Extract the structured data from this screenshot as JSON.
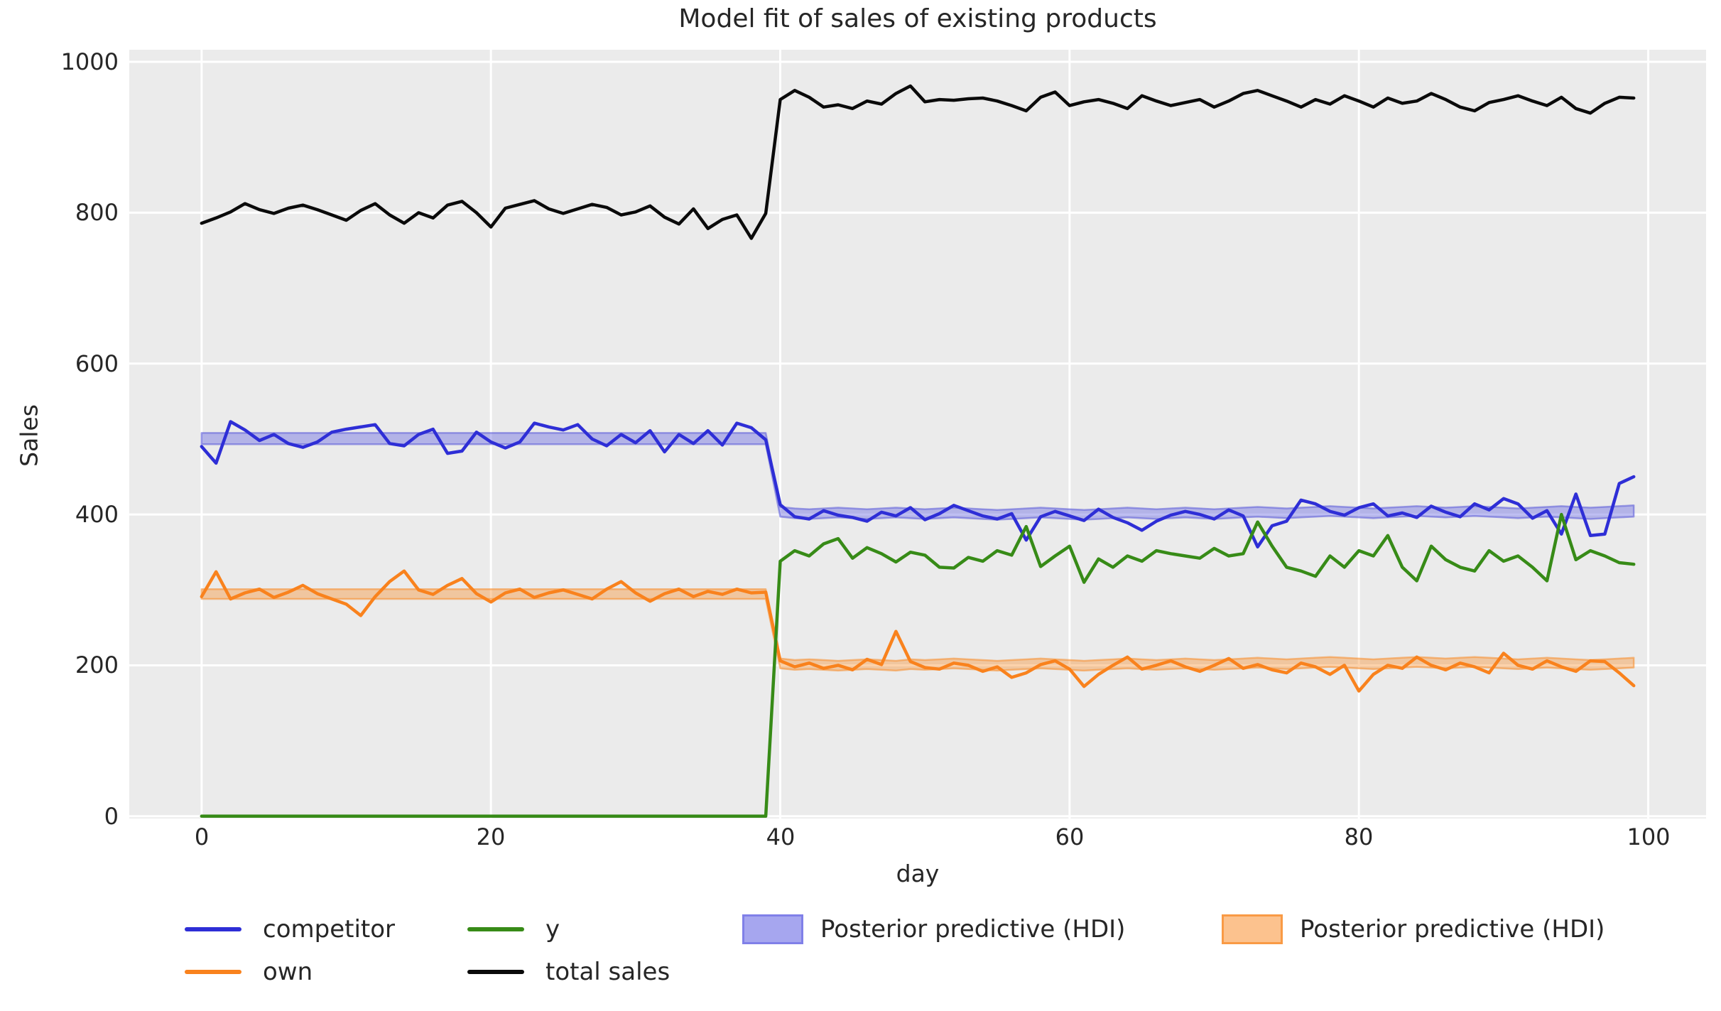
{
  "title": "Model fit of sales of existing products",
  "axes": {
    "xlabel": "day",
    "ylabel": "Sales",
    "xticks": [
      0,
      20,
      40,
      60,
      80,
      100
    ],
    "yticks": [
      0,
      200,
      400,
      600,
      800,
      1000
    ],
    "xlim": [
      -5,
      104
    ],
    "ylim": [
      -3,
      1016
    ]
  },
  "colors": {
    "figure_bg": "#ffffff",
    "plot_bg": "#ebebeb",
    "grid": "#ffffff",
    "text": "#262626",
    "competitor": "#2e2ed6",
    "own": "#f9821d",
    "y": "#378b17",
    "total_sales": "#0a0a0a",
    "hdi_competitor": "#6f6fe3",
    "hdi_own": "#f89436"
  },
  "legend": {
    "items": [
      {
        "label": "competitor",
        "marker": "line",
        "color": "#2e2ed6"
      },
      {
        "label": "own",
        "marker": "line",
        "color": "#f9821d"
      },
      {
        "label": "y",
        "marker": "line",
        "color": "#378b17"
      },
      {
        "label": "total sales",
        "marker": "line",
        "color": "#0a0a0a"
      },
      {
        "label": "Posterior predictive (HDI)",
        "marker": "patch",
        "fill": "#a6a6ef",
        "border": "#8080e8"
      },
      {
        "label": "Posterior predictive (HDI)",
        "marker": "patch",
        "fill": "#fcc28e",
        "border": "#f99a45"
      }
    ]
  },
  "chart_data": {
    "type": "line",
    "title": "Model fit of sales of existing products",
    "xlabel": "day",
    "ylabel": "Sales",
    "grid": true,
    "legend_position": "below",
    "days": [
      0,
      1,
      2,
      3,
      4,
      5,
      6,
      7,
      8,
      9,
      10,
      11,
      12,
      13,
      14,
      15,
      16,
      17,
      18,
      19,
      20,
      21,
      22,
      23,
      24,
      25,
      26,
      27,
      28,
      29,
      30,
      31,
      32,
      33,
      34,
      35,
      36,
      37,
      38,
      39,
      40,
      41,
      42,
      43,
      44,
      45,
      46,
      47,
      48,
      49,
      50,
      51,
      52,
      53,
      54,
      55,
      56,
      57,
      58,
      59,
      60,
      61,
      62,
      63,
      64,
      65,
      66,
      67,
      68,
      69,
      70,
      71,
      72,
      73,
      74,
      75,
      76,
      77,
      78,
      79,
      80,
      81,
      82,
      83,
      84,
      85,
      86,
      87,
      88,
      89,
      90,
      91,
      92,
      93,
      94,
      95,
      96,
      97,
      98,
      99
    ],
    "series": [
      {
        "name": "competitor",
        "color": "#2e2ed6",
        "values": [
          490,
          468,
          523,
          512,
          498,
          506,
          494,
          489,
          496,
          509,
          513,
          516,
          519,
          494,
          491,
          506,
          513,
          481,
          484,
          509,
          496,
          488,
          496,
          521,
          516,
          512,
          519,
          500,
          491,
          506,
          495,
          511,
          483,
          506,
          494,
          511,
          492,
          521,
          515,
          499,
          413,
          397,
          394,
          405,
          399,
          396,
          391,
          403,
          398,
          409,
          393,
          401,
          412,
          405,
          398,
          394,
          401,
          366,
          397,
          404,
          398,
          392,
          407,
          396,
          389,
          379,
          391,
          399,
          404,
          400,
          394,
          406,
          398,
          357,
          385,
          391,
          419,
          414,
          404,
          399,
          409,
          414,
          398,
          402,
          396,
          411,
          403,
          397,
          414,
          406,
          421,
          414,
          395,
          405,
          374,
          427,
          372,
          374,
          441,
          450
        ]
      },
      {
        "name": "own",
        "color": "#f9821d",
        "values": [
          291,
          324,
          288,
          296,
          301,
          290,
          297,
          306,
          295,
          288,
          281,
          266,
          291,
          311,
          325,
          300,
          294,
          306,
          315,
          295,
          284,
          296,
          301,
          290,
          296,
          300,
          294,
          288,
          301,
          311,
          296,
          285,
          295,
          301,
          291,
          298,
          294,
          301,
          296,
          297,
          206,
          198,
          203,
          196,
          200,
          194,
          208,
          201,
          245,
          205,
          197,
          195,
          203,
          200,
          192,
          198,
          184,
          190,
          201,
          206,
          195,
          172,
          188,
          200,
          211,
          195,
          200,
          206,
          198,
          192,
          200,
          209,
          196,
          201,
          194,
          190,
          203,
          198,
          188,
          200,
          166,
          188,
          200,
          196,
          211,
          200,
          194,
          203,
          198,
          190,
          216,
          200,
          195,
          206,
          198,
          192,
          206,
          205,
          190,
          173
        ]
      },
      {
        "name": "y",
        "color": "#378b17",
        "values": [
          0,
          0,
          0,
          0,
          0,
          0,
          0,
          0,
          0,
          0,
          0,
          0,
          0,
          0,
          0,
          0,
          0,
          0,
          0,
          0,
          0,
          0,
          0,
          0,
          0,
          0,
          0,
          0,
          0,
          0,
          0,
          0,
          0,
          0,
          0,
          0,
          0,
          0,
          0,
          0,
          338,
          352,
          345,
          361,
          368,
          342,
          356,
          348,
          337,
          350,
          346,
          330,
          329,
          343,
          338,
          352,
          346,
          384,
          331,
          345,
          358,
          310,
          341,
          330,
          345,
          338,
          352,
          348,
          345,
          342,
          355,
          345,
          348,
          390,
          358,
          330,
          325,
          318,
          345,
          330,
          352,
          345,
          372,
          330,
          312,
          358,
          340,
          330,
          325,
          352,
          338,
          345,
          330,
          312,
          400,
          340,
          352,
          345,
          336,
          334
        ]
      },
      {
        "name": "total sales",
        "color": "#0a0a0a",
        "values": [
          786,
          793,
          801,
          812,
          804,
          799,
          806,
          810,
          804,
          797,
          790,
          803,
          812,
          797,
          786,
          800,
          793,
          810,
          815,
          800,
          781,
          806,
          811,
          816,
          805,
          799,
          805,
          811,
          807,
          797,
          801,
          809,
          794,
          785,
          805,
          779,
          791,
          797,
          766,
          799,
          950,
          962,
          953,
          940,
          943,
          938,
          948,
          944,
          958,
          968,
          947,
          950,
          949,
          951,
          952,
          948,
          942,
          935,
          953,
          960,
          942,
          947,
          950,
          945,
          938,
          955,
          948,
          942,
          946,
          950,
          940,
          948,
          958,
          962,
          955,
          948,
          940,
          950,
          944,
          955,
          948,
          940,
          952,
          945,
          948,
          958,
          950,
          940,
          935,
          946,
          950,
          955,
          948,
          942,
          953,
          938,
          932,
          945,
          953,
          952
        ]
      }
    ],
    "bands": [
      {
        "name": "Posterior predictive (HDI)",
        "series": "competitor",
        "color": "#6f6fe3",
        "fill_opacity": 0.45,
        "edge": "#5a5ad8",
        "edge_opacity": 0.55,
        "lower": [
          493,
          493,
          493,
          493,
          493,
          493,
          493,
          493,
          493,
          493,
          493,
          493,
          493,
          493,
          493,
          493,
          493,
          493,
          493,
          493,
          493,
          493,
          493,
          493,
          493,
          493,
          493,
          493,
          493,
          493,
          493,
          493,
          493,
          493,
          493,
          493,
          493,
          493,
          493,
          493,
          397,
          395,
          394,
          395,
          396,
          395,
          394,
          395,
          396,
          395,
          394,
          395,
          396,
          395,
          394,
          393,
          394,
          395,
          396,
          395,
          394,
          393,
          394,
          395,
          396,
          395,
          394,
          395,
          396,
          395,
          394,
          395,
          396,
          397,
          396,
          395,
          396,
          397,
          398,
          397,
          396,
          395,
          396,
          397,
          398,
          397,
          396,
          397,
          398,
          397,
          396,
          395,
          396,
          397,
          396,
          395,
          394,
          395,
          396,
          397
        ],
        "upper": [
          508,
          508,
          508,
          508,
          508,
          508,
          508,
          508,
          508,
          508,
          508,
          508,
          508,
          508,
          508,
          508,
          508,
          508,
          508,
          508,
          508,
          508,
          508,
          508,
          508,
          508,
          508,
          508,
          508,
          508,
          508,
          508,
          508,
          508,
          508,
          508,
          508,
          508,
          508,
          508,
          410,
          408,
          407,
          408,
          409,
          408,
          407,
          408,
          409,
          408,
          407,
          408,
          409,
          408,
          407,
          406,
          407,
          408,
          409,
          408,
          407,
          406,
          407,
          408,
          409,
          408,
          407,
          408,
          409,
          408,
          407,
          408,
          409,
          410,
          409,
          408,
          409,
          410,
          411,
          410,
          409,
          408,
          409,
          410,
          411,
          410,
          409,
          410,
          411,
          410,
          409,
          408,
          409,
          410,
          411,
          410,
          409,
          410,
          411,
          412
        ]
      },
      {
        "name": "Posterior predictive (HDI)",
        "series": "own",
        "color": "#f89436",
        "fill_opacity": 0.42,
        "edge": "#f78c2a",
        "edge_opacity": 0.55,
        "lower": [
          288,
          288,
          288,
          288,
          288,
          288,
          288,
          288,
          288,
          288,
          288,
          288,
          288,
          288,
          288,
          288,
          288,
          288,
          288,
          288,
          288,
          288,
          288,
          288,
          288,
          288,
          288,
          288,
          288,
          288,
          288,
          288,
          288,
          288,
          288,
          288,
          288,
          288,
          288,
          288,
          196,
          194,
          195,
          194,
          193,
          194,
          195,
          194,
          193,
          195,
          194,
          195,
          196,
          195,
          194,
          193,
          194,
          195,
          196,
          195,
          194,
          193,
          194,
          195,
          196,
          195,
          194,
          195,
          196,
          195,
          194,
          195,
          196,
          197,
          196,
          195,
          196,
          197,
          198,
          197,
          196,
          195,
          196,
          197,
          198,
          197,
          196,
          197,
          198,
          197,
          196,
          195,
          196,
          197,
          196,
          195,
          194,
          195,
          196,
          197
        ],
        "upper": [
          301,
          301,
          301,
          301,
          301,
          301,
          301,
          301,
          301,
          301,
          301,
          301,
          301,
          301,
          301,
          301,
          301,
          301,
          301,
          301,
          301,
          301,
          301,
          301,
          301,
          301,
          301,
          301,
          301,
          301,
          301,
          301,
          301,
          301,
          301,
          301,
          301,
          301,
          301,
          301,
          209,
          207,
          208,
          207,
          206,
          207,
          208,
          207,
          206,
          208,
          207,
          208,
          209,
          208,
          207,
          206,
          207,
          208,
          209,
          208,
          207,
          206,
          207,
          208,
          209,
          208,
          207,
          208,
          209,
          208,
          207,
          208,
          209,
          210,
          209,
          208,
          209,
          210,
          211,
          210,
          209,
          208,
          209,
          210,
          211,
          210,
          209,
          210,
          211,
          210,
          209,
          208,
          209,
          210,
          209,
          208,
          207,
          208,
          209,
          210
        ]
      }
    ]
  }
}
